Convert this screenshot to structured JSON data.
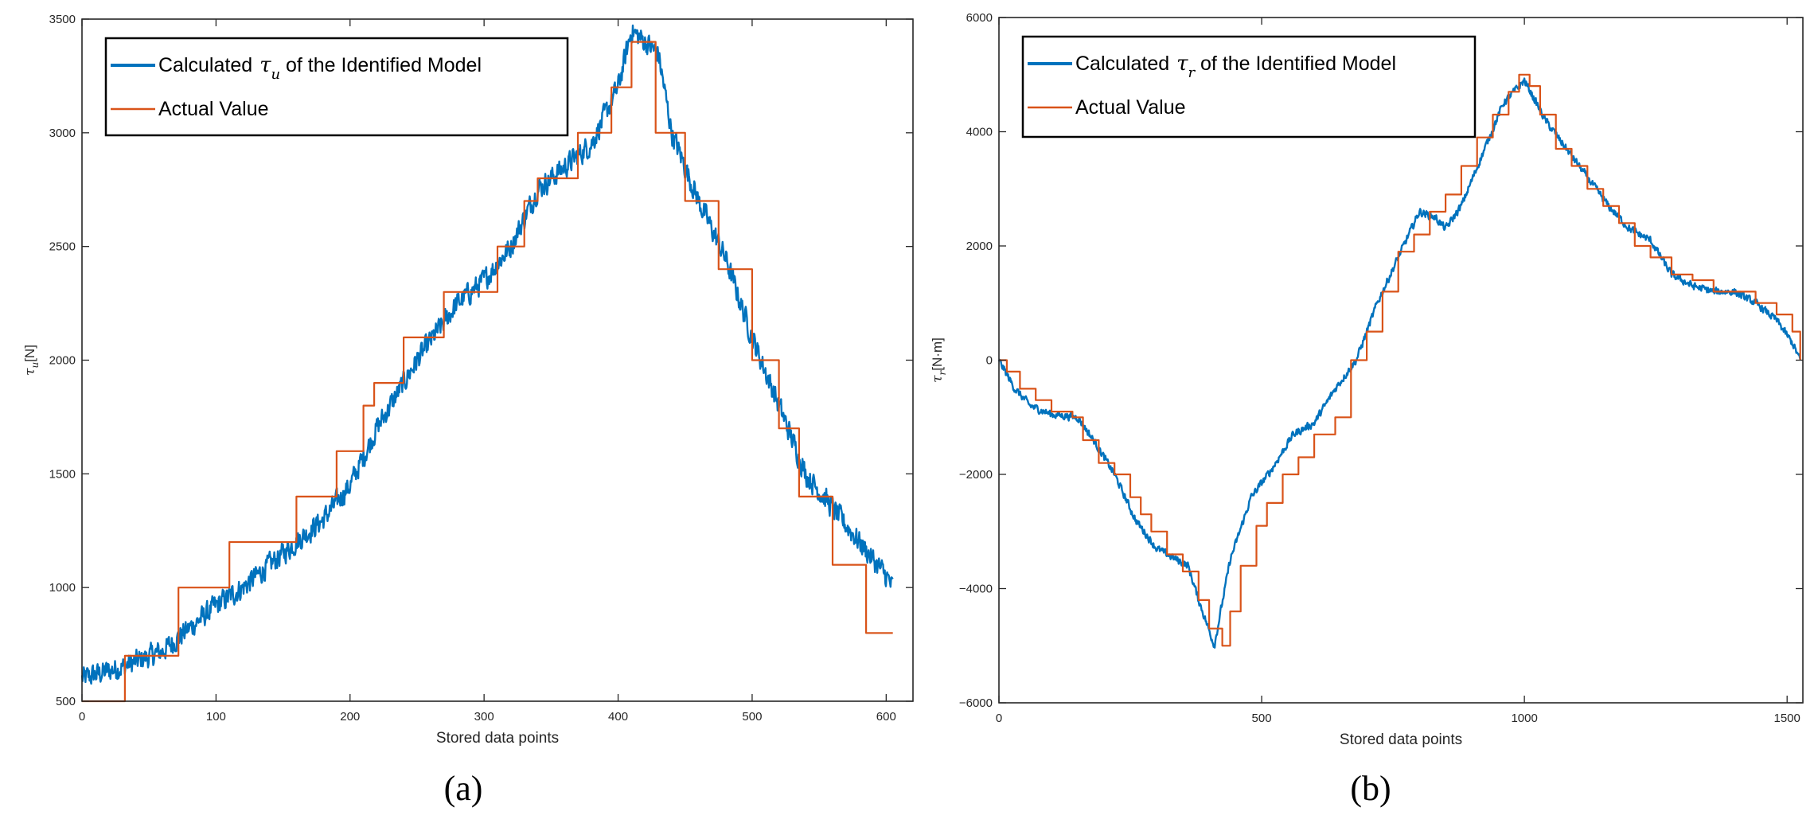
{
  "chart_data": [
    {
      "type": "line",
      "panel_label": "(a)",
      "xlabel": "Stored data points",
      "ylabel_symbol": "τ",
      "ylabel_sub": "u",
      "ylabel_unit": "[N]",
      "xlim": [
        0,
        620
      ],
      "ylim": [
        500,
        3500
      ],
      "xticks": [
        0,
        100,
        200,
        300,
        400,
        500,
        600
      ],
      "yticks": [
        500,
        1000,
        1500,
        2000,
        2500,
        3000,
        3500
      ],
      "legend_position": "top-left",
      "series": [
        {
          "name": "Calculated",
          "legend_prefix": "Calculated ",
          "legend_symbol": "τ",
          "legend_sub": "u",
          "legend_suffix": " of the Identified Model",
          "color": "#0072BD",
          "style": "noisy",
          "noise": 45,
          "x": [
            0,
            30,
            60,
            80,
            100,
            120,
            150,
            180,
            200,
            220,
            250,
            280,
            300,
            320,
            340,
            360,
            380,
            400,
            410,
            420,
            430,
            440,
            460,
            480,
            500,
            520,
            540,
            560,
            580,
            600,
            605
          ],
          "y": [
            600,
            650,
            720,
            820,
            920,
            1000,
            1150,
            1300,
            1450,
            1700,
            2000,
            2250,
            2350,
            2500,
            2750,
            2850,
            2950,
            3200,
            3450,
            3400,
            3350,
            3000,
            2700,
            2450,
            2100,
            1800,
            1500,
            1350,
            1200,
            1050,
            1000
          ]
        },
        {
          "name": "Actual Value",
          "legend_prefix": "Actual Value",
          "color": "#D95319",
          "style": "step",
          "x": [
            0,
            32,
            55,
            72,
            110,
            160,
            190,
            210,
            218,
            240,
            270,
            310,
            330,
            340,
            370,
            395,
            410,
            428,
            435,
            450,
            475,
            500,
            520,
            535,
            560,
            585,
            605
          ],
          "y": [
            500,
            700,
            700,
            1000,
            1200,
            1400,
            1600,
            1800,
            1900,
            2100,
            2300,
            2500,
            2700,
            2800,
            3000,
            3200,
            3400,
            3000,
            3000,
            2700,
            2400,
            2000,
            1700,
            1400,
            1100,
            800,
            800
          ]
        }
      ]
    },
    {
      "type": "line",
      "panel_label": "(b)",
      "xlabel": "Stored data points",
      "ylabel_symbol": "τ",
      "ylabel_sub": "r",
      "ylabel_unit": "[N·m]",
      "xlim": [
        0,
        1530
      ],
      "ylim": [
        -6000,
        6000
      ],
      "xticks": [
        0,
        500,
        1000,
        1500
      ],
      "yticks": [
        -6000,
        -4000,
        -2000,
        0,
        2000,
        4000,
        6000
      ],
      "legend_position": "top-left",
      "series": [
        {
          "name": "Calculated",
          "legend_prefix": "Calculated ",
          "legend_symbol": "τ",
          "legend_sub": "r",
          "legend_suffix": " of the Identified Model",
          "color": "#0072BD",
          "style": "noisy",
          "noise": 60,
          "x": [
            0,
            30,
            60,
            100,
            150,
            180,
            220,
            260,
            300,
            340,
            360,
            380,
            410,
            440,
            480,
            520,
            560,
            600,
            640,
            680,
            720,
            760,
            800,
            830,
            850,
            880,
            920,
            960,
            1000,
            1040,
            1080,
            1120,
            1160,
            1200,
            1240,
            1280,
            1320,
            1360,
            1400,
            1440,
            1480,
            1510,
            1525
          ],
          "y": [
            0,
            -500,
            -800,
            -950,
            -1000,
            -1400,
            -2000,
            -2800,
            -3300,
            -3500,
            -3600,
            -4200,
            -5000,
            -3500,
            -2400,
            -1900,
            -1300,
            -1100,
            -500,
            0,
            1000,
            1800,
            2600,
            2500,
            2300,
            2700,
            3600,
            4500,
            4900,
            4200,
            3700,
            3200,
            2700,
            2300,
            2100,
            1500,
            1300,
            1200,
            1200,
            1000,
            700,
            300,
            0
          ]
        },
        {
          "name": "Actual Value",
          "legend_prefix": "Actual Value",
          "color": "#D95319",
          "style": "step",
          "x": [
            0,
            15,
            40,
            70,
            100,
            140,
            160,
            190,
            220,
            250,
            270,
            290,
            320,
            350,
            380,
            400,
            425,
            440,
            460,
            490,
            510,
            540,
            570,
            600,
            640,
            670,
            700,
            730,
            760,
            790,
            820,
            850,
            880,
            910,
            940,
            970,
            990,
            1010,
            1030,
            1060,
            1090,
            1120,
            1150,
            1180,
            1210,
            1240,
            1280,
            1320,
            1360,
            1400,
            1440,
            1480,
            1510,
            1525
          ],
          "y": [
            0,
            -200,
            -500,
            -700,
            -900,
            -1000,
            -1400,
            -1800,
            -2000,
            -2400,
            -2700,
            -3000,
            -3400,
            -3700,
            -4200,
            -4700,
            -5000,
            -4400,
            -3600,
            -2900,
            -2500,
            -2000,
            -1700,
            -1300,
            -1000,
            0,
            500,
            1200,
            1900,
            2200,
            2600,
            2900,
            3400,
            3900,
            4300,
            4700,
            5000,
            4800,
            4300,
            3700,
            3400,
            3000,
            2700,
            2400,
            2000,
            1800,
            1500,
            1400,
            1200,
            1200,
            1000,
            800,
            500,
            0
          ]
        }
      ]
    }
  ]
}
